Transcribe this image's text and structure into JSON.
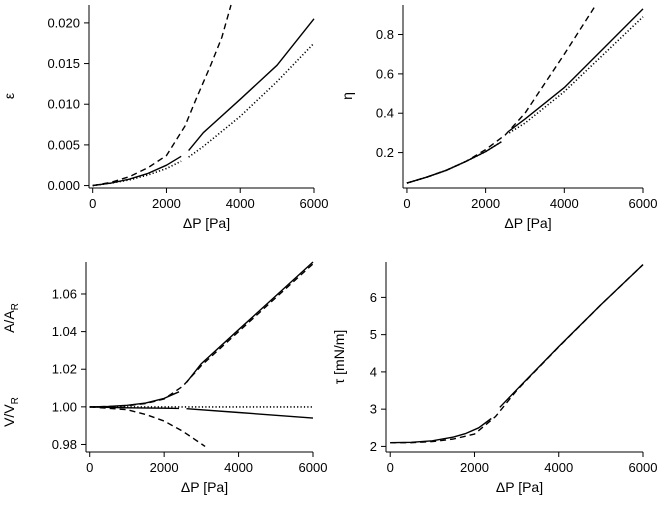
{
  "chart_data": [
    {
      "type": "line",
      "ylabel": "ε",
      "xlabel": "ΔP [Pa]",
      "xlim": [
        -100,
        6000
      ],
      "ylim": [
        -0.0003,
        0.0222
      ],
      "xticks": [
        0,
        2000,
        4000,
        6000
      ],
      "xtick_labels": [
        "0",
        "2000",
        "4000",
        "6000"
      ],
      "yticks": [
        0,
        0.005,
        0.01,
        0.015,
        0.02
      ],
      "ytick_labels": [
        "0.000",
        "0.005",
        "0.010",
        "0.015",
        "0.020"
      ],
      "grid": false,
      "series": [
        {
          "style": "solid",
          "x": [
            0,
            500,
            1000,
            1500,
            2000,
            2400
          ],
          "y": [
            0,
            0.0003,
            0.0008,
            0.0015,
            0.0025,
            0.0036
          ]
        },
        {
          "style": "solid",
          "x": [
            2600,
            3000,
            4000,
            5000,
            6000
          ],
          "y": [
            0.0043,
            0.0065,
            0.0106,
            0.0148,
            0.0205
          ]
        },
        {
          "style": "dotted",
          "x": [
            0,
            500,
            1000,
            1500,
            2000,
            2400
          ],
          "y": [
            0,
            0.0003,
            0.0007,
            0.0013,
            0.0021,
            0.003
          ]
        },
        {
          "style": "dotted",
          "x": [
            2600,
            3000,
            4000,
            5000,
            6000
          ],
          "y": [
            0.0035,
            0.0048,
            0.0085,
            0.0128,
            0.0175
          ]
        },
        {
          "style": "dashed",
          "x": [
            0,
            500,
            1000,
            1500,
            2000,
            2500,
            2800,
            3200,
            3500,
            3750
          ],
          "y": [
            0,
            0.0004,
            0.0011,
            0.0022,
            0.0037,
            0.0073,
            0.0106,
            0.0148,
            0.0182,
            0.0222
          ]
        }
      ]
    },
    {
      "type": "line",
      "ylabel": "η",
      "xlabel": "ΔP [Pa]",
      "xlim": [
        -100,
        6000
      ],
      "ylim": [
        0.02,
        0.95
      ],
      "xticks": [
        0,
        2000,
        4000,
        6000
      ],
      "xtick_labels": [
        "0",
        "2000",
        "4000",
        "6000"
      ],
      "yticks": [
        0.2,
        0.4,
        0.6,
        0.8
      ],
      "ytick_labels": [
        "0.2",
        "0.4",
        "0.6",
        "0.8"
      ],
      "grid": false,
      "series": [
        {
          "style": "solid",
          "x": [
            0,
            500,
            1000,
            1500,
            2000,
            2400
          ],
          "y": [
            0.045,
            0.075,
            0.11,
            0.155,
            0.205,
            0.255
          ]
        },
        {
          "style": "solid",
          "x": [
            2600,
            3000,
            4000,
            5000,
            6000
          ],
          "y": [
            0.31,
            0.37,
            0.53,
            0.73,
            0.93
          ]
        },
        {
          "style": "dotted",
          "x": [
            0,
            500,
            1000,
            1500,
            2000,
            2400
          ],
          "y": [
            0.045,
            0.075,
            0.11,
            0.155,
            0.205,
            0.255
          ]
        },
        {
          "style": "dotted",
          "x": [
            2600,
            3000,
            4000,
            5000,
            6000
          ],
          "y": [
            0.3,
            0.35,
            0.51,
            0.7,
            0.89
          ]
        },
        {
          "style": "dashed",
          "x": [
            0,
            500,
            1000,
            1500,
            2000,
            2500,
            3000,
            3500,
            4000,
            4800
          ],
          "y": [
            0.045,
            0.075,
            0.11,
            0.155,
            0.215,
            0.29,
            0.4,
            0.55,
            0.7,
            0.95
          ]
        }
      ]
    },
    {
      "type": "line",
      "ylabel_top": "A/A",
      "ylabel_top_sub": "R",
      "ylabel_bottom": "V/V",
      "ylabel_bottom_sub": "R",
      "xlabel": "ΔP [Pa]",
      "xlim": [
        -100,
        6000
      ],
      "ylim": [
        0.976,
        1.077
      ],
      "xticks": [
        0,
        2000,
        4000,
        6000
      ],
      "xtick_labels": [
        "0",
        "2000",
        "4000",
        "6000"
      ],
      "yticks": [
        0.98,
        1.0,
        1.02,
        1.04,
        1.06
      ],
      "ytick_labels": [
        "0.98",
        "1.00",
        "1.02",
        "1.04",
        "1.06"
      ],
      "grid": false,
      "series": [
        {
          "style": "solid",
          "x": [
            0,
            500,
            1000,
            1500,
            2000,
            2400
          ],
          "y": [
            1.0,
            1.0002,
            1.0008,
            1.002,
            1.0045,
            1.008
          ]
        },
        {
          "style": "solid",
          "x": [
            2600,
            3000,
            4000,
            5000,
            6000
          ],
          "y": [
            1.013,
            1.023,
            1.041,
            1.059,
            1.077
          ]
        },
        {
          "style": "dashed",
          "x": [
            0,
            500,
            1000,
            1500,
            2000,
            2500,
            3000,
            4000,
            5000,
            6000
          ],
          "y": [
            1.0,
            1.0002,
            1.0006,
            1.0018,
            1.0042,
            1.011,
            1.022,
            1.04,
            1.058,
            1.076
          ]
        },
        {
          "style": "solid",
          "x": [
            0,
            1000,
            2000,
            2400
          ],
          "y": [
            1.0,
            0.9995,
            0.9993,
            0.9992
          ]
        },
        {
          "style": "solid",
          "x": [
            2600,
            4000,
            6000
          ],
          "y": [
            0.999,
            0.997,
            0.994
          ]
        },
        {
          "style": "dotted",
          "x": [
            0,
            1000,
            2000,
            2400,
            2600,
            4000,
            6000
          ],
          "y": [
            1.0,
            1.0,
            1.0,
            1.0,
            1.0,
            1.0,
            1.0
          ]
        },
        {
          "style": "dashed",
          "x": [
            0,
            1000,
            1500,
            2000,
            2500,
            2800,
            3100
          ],
          "y": [
            1.0,
            0.9985,
            0.996,
            0.9925,
            0.987,
            0.983,
            0.979
          ]
        }
      ]
    },
    {
      "type": "line",
      "ylabel": "τ [mN/m]",
      "xlabel": "ΔP [Pa]",
      "xlim": [
        -100,
        6000
      ],
      "ylim": [
        1.85,
        6.95
      ],
      "xticks": [
        0,
        2000,
        4000,
        6000
      ],
      "xtick_labels": [
        "0",
        "2000",
        "4000",
        "6000"
      ],
      "yticks": [
        2,
        3,
        4,
        5,
        6
      ],
      "ytick_labels": [
        "2",
        "3",
        "4",
        "5",
        "6"
      ],
      "grid": false,
      "series": [
        {
          "style": "solid",
          "x": [
            0,
            500,
            1000,
            1500,
            1800,
            2100,
            2400
          ],
          "y": [
            2.1,
            2.11,
            2.15,
            2.25,
            2.35,
            2.5,
            2.75
          ]
        },
        {
          "style": "solid",
          "x": [
            2600,
            3000,
            4000,
            5000,
            6000
          ],
          "y": [
            3.05,
            3.52,
            4.68,
            5.8,
            6.88
          ]
        },
        {
          "style": "dashed",
          "x": [
            0,
            500,
            1000,
            1500,
            2000,
            2500,
            3000,
            4000,
            5000,
            6000
          ],
          "y": [
            2.1,
            2.1,
            2.13,
            2.2,
            2.33,
            2.8,
            3.5,
            4.67,
            5.8,
            6.88
          ]
        }
      ]
    }
  ]
}
